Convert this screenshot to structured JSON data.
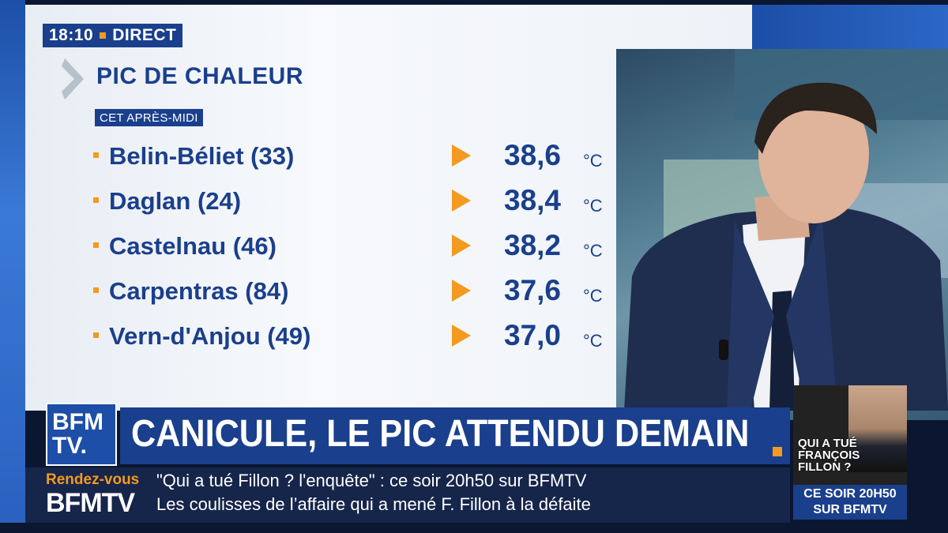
{
  "overlay": {
    "time": "18:10",
    "live_label": "DIRECT",
    "title": "PIC DE CHALEUR",
    "subtitle": "CET APRÈS-MIDI"
  },
  "readings": [
    {
      "city": "Belin-Béliet (33)",
      "temp": "38,6",
      "unit": "°C"
    },
    {
      "city": "Daglan (24)",
      "temp": "38,4",
      "unit": "°C"
    },
    {
      "city": "Castelnau (46)",
      "temp": "38,2",
      "unit": "°C"
    },
    {
      "city": "Carpentras (84)",
      "temp": "37,6",
      "unit": "°C"
    },
    {
      "city": "Vern-d'Anjou (49)",
      "temp": "37,0",
      "unit": "°C"
    }
  ],
  "lower_third": {
    "logo_line1": "BFM",
    "logo_line2": "TV.",
    "headline": "CANICULE, LE PIC ATTENDU DEMAIN"
  },
  "ticker": {
    "tag": "Rendez-vous",
    "brand": "BFMTV",
    "line1": "\"Qui a tué Fillon ? l'enquête\" : ce soir 20h50 sur BFMTV",
    "line2": "Les coulisses de l’affaire qui a mené F. Fillon à la défaite"
  },
  "promo": {
    "question": "QUI A TUÉ FRANÇOIS FILLON ?",
    "schedule": "CE SOIR 20H50 SUR BFMTV"
  },
  "colors": {
    "brand_blue": "#1a3f8c",
    "accent_orange": "#f39a1f"
  }
}
